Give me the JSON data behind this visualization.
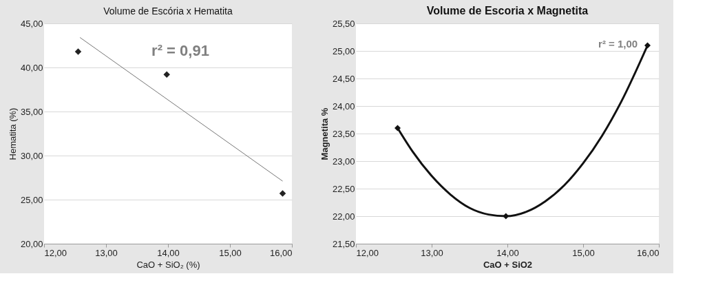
{
  "chart_data": [
    {
      "type": "scatter",
      "title": "Volume de Escória x Hematita",
      "xlabel": "CaO + SiO₂ (%)",
      "ylabel": "Hematita (%)",
      "series": [
        {
          "color": "#222222",
          "marker": "diamond",
          "x": [
            12.55,
            13.98,
            15.85
          ],
          "values": [
            41.8,
            39.2,
            25.7
          ]
        },
        {
          "type": "line",
          "marker": "none",
          "color": "#777777",
          "x": [
            12.58,
            15.85
          ],
          "values": [
            43.4,
            27.1
          ]
        }
      ],
      "xlim": [
        12,
        16
      ],
      "xticks": [
        {
          "value": 12,
          "label": "12,00"
        },
        {
          "value": 13,
          "label": "13,00"
        },
        {
          "value": 14,
          "label": "14,00"
        },
        {
          "value": 15,
          "label": "15,00"
        },
        {
          "value": 16,
          "label": "16,00"
        }
      ],
      "ylim": [
        20,
        45
      ],
      "yticks": [
        {
          "value": 20,
          "label": "20,00"
        },
        {
          "value": 25,
          "label": "25,00"
        },
        {
          "value": 30,
          "label": "30,00"
        },
        {
          "value": 35,
          "label": "35,00"
        },
        {
          "value": 40,
          "label": "40,00"
        },
        {
          "value": 45,
          "label": "45,00"
        }
      ],
      "annotations": [
        "r² = 0,91"
      ],
      "grid": "y"
    },
    {
      "type": "scatter",
      "title": "Volume de Escoria x Magnetita",
      "xlabel": "CaO + SiO2",
      "ylabel": "Magnetita %",
      "series": [
        {
          "color": "#111111",
          "marker": "diamond",
          "x": [
            12.55,
            13.98,
            15.85
          ],
          "values": [
            23.6,
            22.0,
            25.1
          ]
        },
        {
          "type": "line",
          "marker": "none",
          "color": "#111111",
          "x": [
            12.55,
            12.75,
            13.0,
            13.25,
            13.5,
            13.75,
            13.98,
            14.25,
            14.5,
            14.75,
            15.0,
            15.25,
            15.5,
            15.85
          ],
          "values": [
            23.6,
            23.17,
            22.73,
            22.39,
            22.15,
            22.03,
            22.0,
            22.08,
            22.27,
            22.56,
            22.96,
            23.46,
            24.07,
            25.1
          ]
        }
      ],
      "xlim": [
        12,
        16
      ],
      "xticks": [
        {
          "value": 12,
          "label": "12,00"
        },
        {
          "value": 13,
          "label": "13,00"
        },
        {
          "value": 14,
          "label": "14,00"
        },
        {
          "value": 15,
          "label": "15,00"
        },
        {
          "value": 16,
          "label": "16,00"
        }
      ],
      "ylim": [
        21.5,
        25.5
      ],
      "yticks": [
        {
          "value": 21.5,
          "label": "21,50"
        },
        {
          "value": 22,
          "label": "22,00"
        },
        {
          "value": 22.5,
          "label": "22,50"
        },
        {
          "value": 23,
          "label": "23,00"
        },
        {
          "value": 23.5,
          "label": "23,50"
        },
        {
          "value": 24,
          "label": "24,00"
        },
        {
          "value": 24.5,
          "label": "24,50"
        },
        {
          "value": 25,
          "label": "25,00"
        },
        {
          "value": 25.5,
          "label": "25,50"
        }
      ],
      "annotations": [
        "r² = 1,00"
      ],
      "grid": "y"
    }
  ]
}
